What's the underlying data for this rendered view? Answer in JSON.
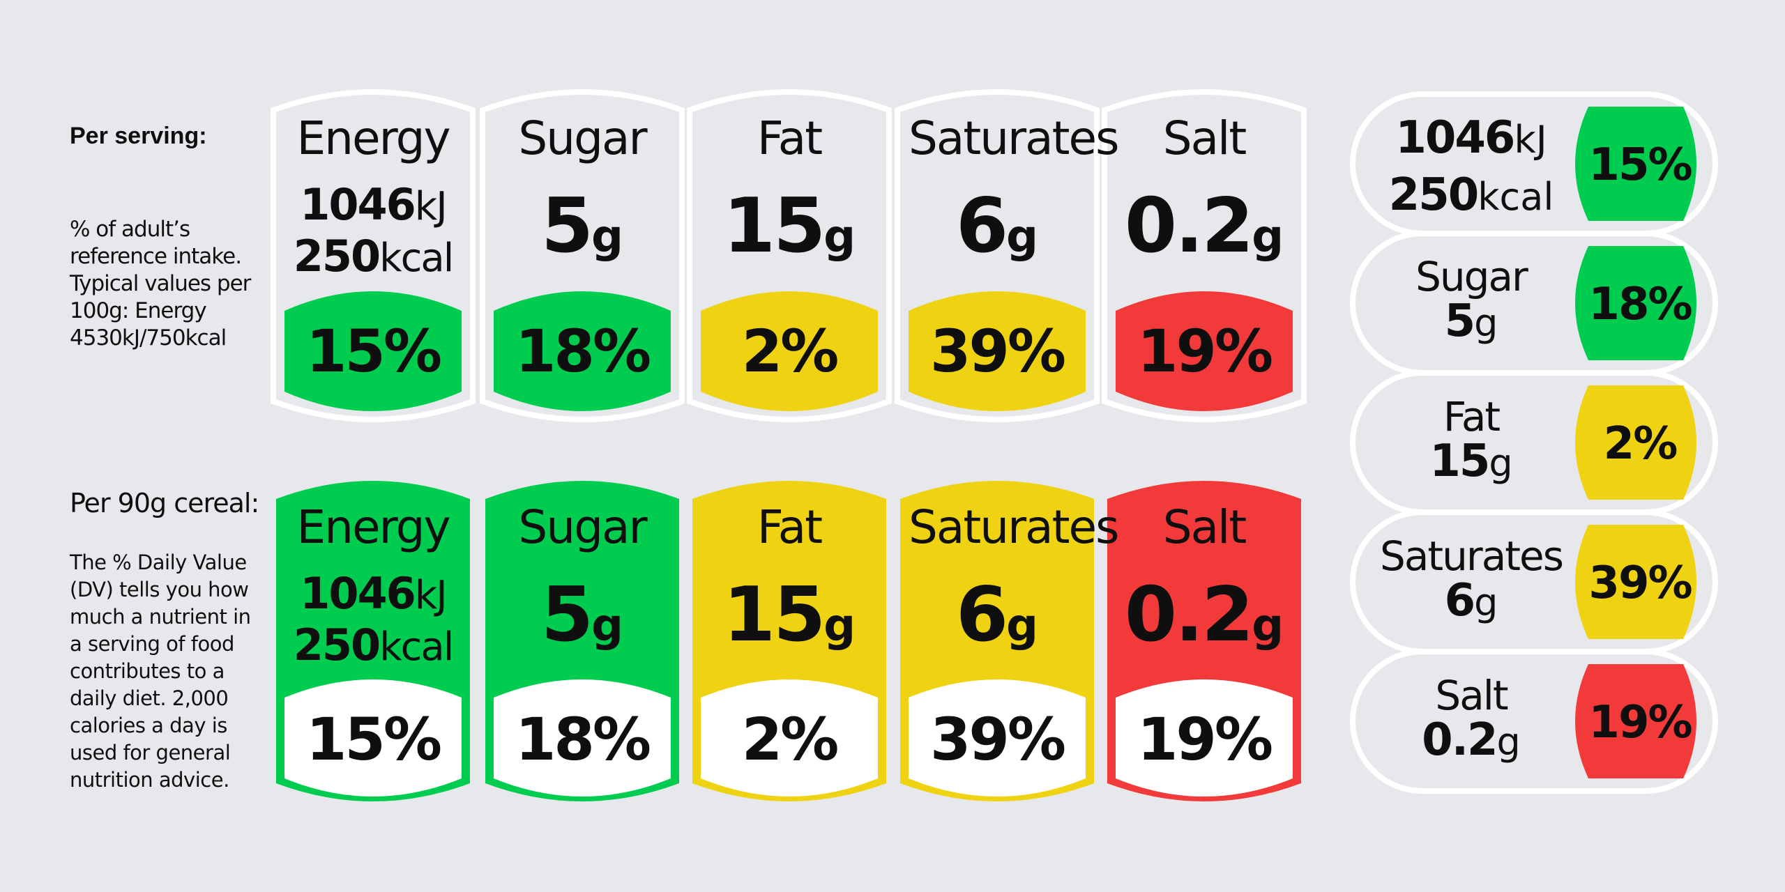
{
  "colors": {
    "green": "#00cc4f",
    "yellow": "#efd312",
    "red": "#f23a3a",
    "panel": "#e7e8ec",
    "outline": "#ffffff"
  },
  "per_serving": {
    "heading": "Per serving:",
    "note": "% of adult’s reference intake. Typical values per 100g: Energy 4530kJ/750kcal"
  },
  "per_cereal": {
    "heading": "Per 90g cereal:",
    "note": "The % Daily Value (DV) tells you how much a nutrient in a serving of food contributes to a daily diet. 2,000 calories a day is used for general nutrition advice."
  },
  "nutrients": [
    {
      "name": "Energy",
      "kj": "1046",
      "kj_unit": "kJ",
      "kcal": "250",
      "kcal_unit": "kcal",
      "percent": "15%",
      "rating": "green"
    },
    {
      "name": "Sugar",
      "amount": "5",
      "unit": "g",
      "percent": "18%",
      "rating": "green"
    },
    {
      "name": "Fat",
      "amount": "15",
      "unit": "g",
      "percent": "2%",
      "rating": "yellow"
    },
    {
      "name": "Saturates",
      "amount": "6",
      "unit": "g",
      "percent": "39%",
      "rating": "yellow"
    },
    {
      "name": "Salt",
      "amount": "0.2",
      "unit": "g",
      "percent": "19%",
      "rating": "red"
    }
  ]
}
